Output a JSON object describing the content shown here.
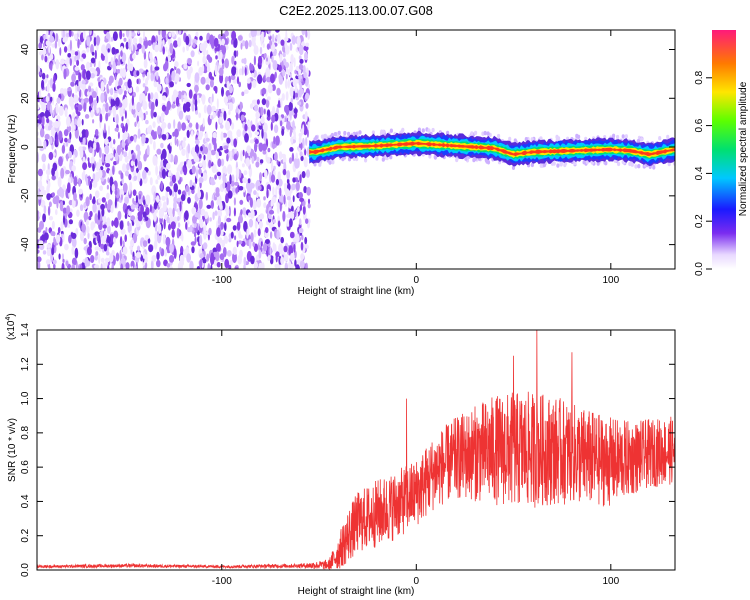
{
  "title": "C2E2.2025.113.00.07.G08",
  "colors": {
    "axis": "#000000",
    "snr_line": "#ee3333",
    "spectrogram_noise": "#6a2bd9",
    "spectrogram_signal_core": "#ff2a2a"
  },
  "chart_data": [
    {
      "type": "heatmap",
      "name_role": "spectrogram",
      "xlabel": "Height of straight line (km)",
      "ylabel": "Frequency (Hz)",
      "xlim": [
        -195,
        133
      ],
      "ylim": [
        -50,
        48
      ],
      "xticks": [
        -100,
        0,
        100
      ],
      "xtick_labels": [
        "-100",
        "0",
        "100"
      ],
      "yticks": [
        -40,
        -20,
        0,
        20,
        40
      ],
      "ytick_labels": [
        "-40",
        "-20",
        "0",
        "20",
        "40"
      ],
      "noise_region_x": [
        -195,
        -55
      ],
      "signal_region_x": [
        -55,
        133
      ],
      "signal_track": {
        "x": [
          -52,
          -40,
          -20,
          0,
          20,
          40,
          50,
          60,
          80,
          100,
          110,
          120,
          133
        ],
        "y": [
          -2,
          0,
          0.5,
          1.5,
          0.5,
          -0.5,
          -3,
          -2,
          -1.5,
          -1,
          -1.5,
          -3,
          -1
        ]
      },
      "colorbar": {
        "label": "Normalized spectral amplitude",
        "range": [
          0.0,
          1.0
        ],
        "ticks": [
          0.0,
          0.2,
          0.4,
          0.6,
          0.8
        ],
        "tick_labels": [
          "0.0",
          "0.2",
          "0.4",
          "0.6",
          "0.8"
        ]
      },
      "grid": false
    },
    {
      "type": "line",
      "name_role": "snr",
      "xlabel": "Height of straight line (km)",
      "ylabel": "SNR (10 * v/v)",
      "multiplier_label": "(x10",
      "multiplier_exp": "4",
      "multiplier_close": ")",
      "xlim": [
        -195,
        133
      ],
      "ylim": [
        0.0,
        1.4
      ],
      "xticks": [
        -100,
        0,
        100
      ],
      "xtick_labels": [
        "-100",
        "0",
        "100"
      ],
      "yticks": [
        0.0,
        0.2,
        0.4,
        0.6,
        0.8,
        1.0,
        1.2,
        1.4
      ],
      "ytick_labels": [
        "0.0",
        "0.2",
        "0.4",
        "0.6",
        "0.8",
        "1.0",
        "1.2",
        "1.4"
      ],
      "envelope": {
        "x": [
          -195,
          -150,
          -100,
          -60,
          -45,
          -40,
          -35,
          -30,
          -20,
          -10,
          0,
          10,
          20,
          30,
          40,
          50,
          60,
          70,
          80,
          90,
          100,
          110,
          120,
          133
        ],
        "mean": [
          0.02,
          0.025,
          0.02,
          0.025,
          0.03,
          0.1,
          0.2,
          0.28,
          0.33,
          0.38,
          0.45,
          0.58,
          0.65,
          0.68,
          0.7,
          0.7,
          0.7,
          0.7,
          0.68,
          0.65,
          0.63,
          0.65,
          0.68,
          0.7
        ],
        "spread": [
          0.008,
          0.01,
          0.008,
          0.012,
          0.03,
          0.1,
          0.16,
          0.18,
          0.2,
          0.2,
          0.2,
          0.22,
          0.24,
          0.28,
          0.32,
          0.34,
          0.34,
          0.32,
          0.3,
          0.28,
          0.26,
          0.22,
          0.2,
          0.2
        ]
      },
      "peaks": [
        {
          "x": -5,
          "y": 1.0
        },
        {
          "x": 50,
          "y": 1.25
        },
        {
          "x": 62,
          "y": 1.4
        },
        {
          "x": 80,
          "y": 1.27
        }
      ],
      "grid": false
    }
  ]
}
